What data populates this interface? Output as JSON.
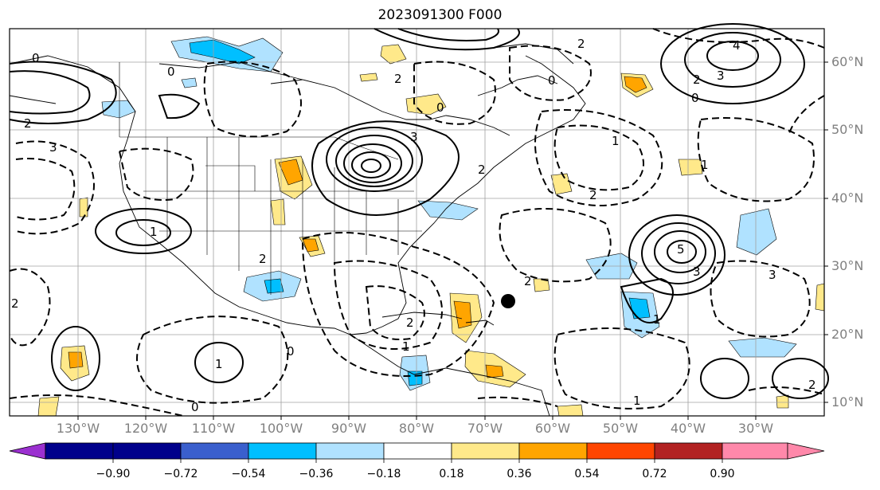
{
  "title": "2023091300 F000",
  "lat_labels": [
    "60°N",
    "50°N",
    "40°N",
    "30°N",
    "20°N",
    "10°N"
  ],
  "lon_labels": [
    "130°W",
    "120°W",
    "110°W",
    "100°W",
    "90°W",
    "80°W",
    "70°W",
    "60°W",
    "50°W",
    "40°W",
    "30°W"
  ],
  "colorbar": {
    "ticks": [
      "−0.90",
      "−0.72",
      "−0.54",
      "−0.36",
      "−0.18",
      "0.18",
      "0.36",
      "0.54",
      "0.72",
      "0.90"
    ],
    "colors": [
      "#9b30d0",
      "#00008b",
      "#3a5fcd",
      "#00bfff",
      "#b0e2ff",
      "#ffffff",
      "#ffe98a",
      "#ffa500",
      "#ff4500",
      "#b22222",
      "#ff88aa"
    ]
  },
  "contour_labels": [
    "0",
    "0",
    "0",
    "0",
    "0",
    "0",
    "0",
    "1",
    "1",
    "1",
    "1",
    "1",
    "1",
    "1",
    "2",
    "2",
    "2",
    "2",
    "2",
    "2",
    "2",
    "2",
    "2",
    "2",
    "2",
    "3",
    "3",
    "3",
    "3",
    "3",
    "4",
    "5"
  ],
  "marker": "storm-center"
}
